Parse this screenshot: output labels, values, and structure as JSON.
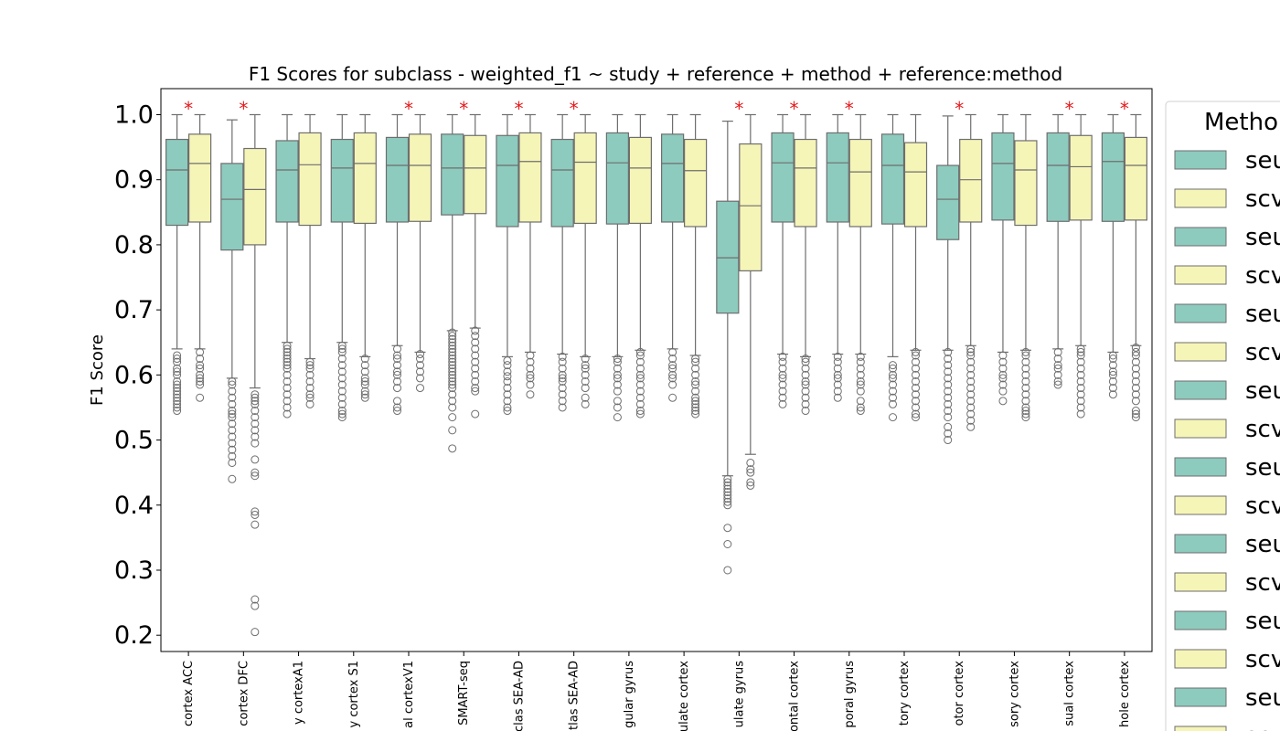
{
  "chart_data": {
    "type": "box",
    "title": "F1 Scores for subclass - weighted_f1 ~ study + reference + method + reference:method",
    "ylabel": "F1 Score",
    "xlabel": "",
    "ylim": [
      0.175,
      1.04
    ],
    "yticks": [
      0.2,
      0.3,
      0.4,
      0.5,
      0.6,
      0.7,
      0.8,
      0.9,
      1.0
    ],
    "ytick_labels": [
      "0.2",
      "0.3",
      "0.4",
      "0.5",
      "0.6",
      "0.7",
      "0.8",
      "0.9",
      "1.0"
    ],
    "legend": {
      "title": "Metho",
      "placement": "right, outside (cropped)",
      "entries": [
        {
          "label": "seu",
          "color": "#8dcbbe"
        },
        {
          "label": "scv",
          "color": "#f6f5b8"
        },
        {
          "label": "seu",
          "color": "#8dcbbe"
        },
        {
          "label": "scv",
          "color": "#f6f5b8"
        },
        {
          "label": "seu",
          "color": "#8dcbbe"
        },
        {
          "label": "scv",
          "color": "#f6f5b8"
        },
        {
          "label": "seu",
          "color": "#8dcbbe"
        },
        {
          "label": "scv",
          "color": "#f6f5b8"
        },
        {
          "label": "seu",
          "color": "#8dcbbe"
        },
        {
          "label": "scv",
          "color": "#f6f5b8"
        },
        {
          "label": "seu",
          "color": "#8dcbbe"
        },
        {
          "label": "scv",
          "color": "#f6f5b8"
        },
        {
          "label": "seu",
          "color": "#8dcbbe"
        },
        {
          "label": "scv",
          "color": "#f6f5b8"
        },
        {
          "label": "seu",
          "color": "#8dcbbe"
        },
        {
          "label": "scv",
          "color": "#f6f5b8"
        }
      ]
    },
    "significance_marker": "*",
    "colors": {
      "teal": "#8dcbbe",
      "yellow": "#f6f5b8",
      "edge": "#6e6e6e",
      "star": "#e41a1c"
    },
    "categories": [
      {
        "label": "cortex ACC",
        "sig": true,
        "boxes": [
          {
            "q1": 0.83,
            "med": 0.915,
            "q3": 0.962,
            "lo": 0.64,
            "hi": 1.0,
            "out": [
              0.63,
              0.625,
              0.62,
              0.61,
              0.605,
              0.6,
              0.59,
              0.585,
              0.58,
              0.575,
              0.57,
              0.565,
              0.56,
              0.555,
              0.55,
              0.545
            ]
          },
          {
            "q1": 0.835,
            "med": 0.925,
            "q3": 0.97,
            "lo": 0.64,
            "hi": 1.0,
            "out": [
              0.635,
              0.625,
              0.615,
              0.61,
              0.6,
              0.595,
              0.59,
              0.585,
              0.565
            ]
          }
        ]
      },
      {
        "label": "cortex DFC",
        "sig": true,
        "boxes": [
          {
            "q1": 0.792,
            "med": 0.87,
            "q3": 0.925,
            "lo": 0.595,
            "hi": 0.992,
            "out": [
              0.59,
              0.585,
              0.575,
              0.565,
              0.555,
              0.545,
              0.54,
              0.535,
              0.525,
              0.515,
              0.505,
              0.495,
              0.485,
              0.475,
              0.465,
              0.44
            ]
          },
          {
            "q1": 0.8,
            "med": 0.885,
            "q3": 0.948,
            "lo": 0.58,
            "hi": 1.0,
            "out": [
              0.57,
              0.565,
              0.56,
              0.555,
              0.545,
              0.535,
              0.525,
              0.515,
              0.505,
              0.495,
              0.47,
              0.45,
              0.445,
              0.39,
              0.385,
              0.37,
              0.255,
              0.245,
              0.205
            ]
          }
        ]
      },
      {
        "label": "y cortexA1",
        "sig": false,
        "boxes": [
          {
            "q1": 0.835,
            "med": 0.915,
            "q3": 0.96,
            "lo": 0.65,
            "hi": 1.0,
            "out": [
              0.645,
              0.64,
              0.635,
              0.63,
              0.625,
              0.62,
              0.615,
              0.61,
              0.6,
              0.59,
              0.58,
              0.57,
              0.56,
              0.55,
              0.54
            ]
          },
          {
            "q1": 0.83,
            "med": 0.923,
            "q3": 0.972,
            "lo": 0.625,
            "hi": 1.0,
            "out": [
              0.62,
              0.615,
              0.61,
              0.6,
              0.59,
              0.58,
              0.57,
              0.565,
              0.555
            ]
          }
        ]
      },
      {
        "label": "y cortex S1",
        "sig": false,
        "boxes": [
          {
            "q1": 0.835,
            "med": 0.918,
            "q3": 0.962,
            "lo": 0.65,
            "hi": 1.0,
            "out": [
              0.645,
              0.64,
              0.635,
              0.625,
              0.615,
              0.605,
              0.595,
              0.585,
              0.575,
              0.565,
              0.555,
              0.545,
              0.54,
              0.535
            ]
          },
          {
            "q1": 0.833,
            "med": 0.925,
            "q3": 0.972,
            "lo": 0.628,
            "hi": 1.0,
            "out": [
              0.625,
              0.615,
              0.605,
              0.595,
              0.59,
              0.585,
              0.575,
              0.57,
              0.565
            ]
          }
        ]
      },
      {
        "label": "al cortexV1",
        "sig": true,
        "boxes": [
          {
            "q1": 0.835,
            "med": 0.922,
            "q3": 0.965,
            "lo": 0.645,
            "hi": 1.0,
            "out": [
              0.64,
              0.63,
              0.625,
              0.615,
              0.605,
              0.6,
              0.59,
              0.58,
              0.56,
              0.55,
              0.545
            ]
          },
          {
            "q1": 0.836,
            "med": 0.922,
            "q3": 0.97,
            "lo": 0.635,
            "hi": 1.0,
            "out": [
              0.632,
              0.625,
              0.615,
              0.605,
              0.595,
              0.58
            ]
          }
        ]
      },
      {
        "label": "SMART-seq",
        "sig": true,
        "boxes": [
          {
            "q1": 0.846,
            "med": 0.918,
            "q3": 0.97,
            "lo": 0.668,
            "hi": 1.0,
            "out": [
              0.665,
              0.66,
              0.655,
              0.65,
              0.645,
              0.64,
              0.635,
              0.63,
              0.625,
              0.62,
              0.615,
              0.61,
              0.605,
              0.6,
              0.595,
              0.59,
              0.585,
              0.58,
              0.57,
              0.56,
              0.55,
              0.535,
              0.515,
              0.487
            ]
          },
          {
            "q1": 0.848,
            "med": 0.918,
            "q3": 0.968,
            "lo": 0.672,
            "hi": 1.0,
            "out": [
              0.668,
              0.66,
              0.65,
              0.64,
              0.63,
              0.62,
              0.61,
              0.6,
              0.59,
              0.58,
              0.575,
              0.54
            ]
          }
        ]
      },
      {
        "label": "clas SEA-AD",
        "sig": true,
        "boxes": [
          {
            "q1": 0.828,
            "med": 0.922,
            "q3": 0.968,
            "lo": 0.628,
            "hi": 1.0,
            "out": [
              0.622,
              0.615,
              0.605,
              0.598,
              0.59,
              0.58,
              0.57,
              0.56,
              0.55,
              0.545
            ]
          },
          {
            "q1": 0.835,
            "med": 0.928,
            "q3": 0.972,
            "lo": 0.635,
            "hi": 1.0,
            "out": [
              0.63,
              0.62,
              0.61,
              0.6,
              0.595,
              0.585,
              0.57
            ]
          }
        ]
      },
      {
        "label": "tlas SEA-AD",
        "sig": true,
        "boxes": [
          {
            "q1": 0.828,
            "med": 0.915,
            "q3": 0.962,
            "lo": 0.632,
            "hi": 1.0,
            "out": [
              0.628,
              0.62,
              0.61,
              0.6,
              0.595,
              0.59,
              0.58,
              0.57,
              0.56,
              0.55
            ]
          },
          {
            "q1": 0.833,
            "med": 0.927,
            "q3": 0.972,
            "lo": 0.628,
            "hi": 1.0,
            "out": [
              0.625,
              0.615,
              0.61,
              0.6,
              0.59,
              0.58,
              0.565,
              0.555
            ]
          }
        ]
      },
      {
        "label": "gular gyrus",
        "sig": false,
        "boxes": [
          {
            "q1": 0.832,
            "med": 0.926,
            "q3": 0.972,
            "lo": 0.628,
            "hi": 1.0,
            "out": [
              0.625,
              0.62,
              0.61,
              0.6,
              0.595,
              0.585,
              0.575,
              0.56,
              0.55,
              0.535
            ]
          },
          {
            "q1": 0.833,
            "med": 0.918,
            "q3": 0.965,
            "lo": 0.638,
            "hi": 1.0,
            "out": [
              0.635,
              0.63,
              0.62,
              0.61,
              0.6,
              0.595,
              0.585,
              0.575,
              0.565,
              0.555,
              0.545,
              0.54
            ]
          }
        ]
      },
      {
        "label": "ulate cortex",
        "sig": false,
        "boxes": [
          {
            "q1": 0.835,
            "med": 0.925,
            "q3": 0.97,
            "lo": 0.64,
            "hi": 1.0,
            "out": [
              0.635,
              0.625,
              0.615,
              0.61,
              0.6,
              0.595,
              0.585,
              0.565
            ]
          },
          {
            "q1": 0.828,
            "med": 0.914,
            "q3": 0.962,
            "lo": 0.63,
            "hi": 1.0,
            "out": [
              0.625,
              0.62,
              0.61,
              0.6,
              0.59,
              0.585,
              0.575,
              0.565,
              0.56,
              0.555,
              0.55,
              0.545,
              0.54
            ]
          }
        ]
      },
      {
        "label": "ulate gyrus",
        "sig": true,
        "boxes": [
          {
            "q1": 0.695,
            "med": 0.78,
            "q3": 0.867,
            "lo": 0.445,
            "hi": 0.99,
            "out": [
              0.44,
              0.435,
              0.43,
              0.425,
              0.42,
              0.415,
              0.41,
              0.405,
              0.4,
              0.365,
              0.34,
              0.3
            ]
          },
          {
            "q1": 0.76,
            "med": 0.86,
            "q3": 0.955,
            "lo": 0.478,
            "hi": 1.0,
            "out": [
              0.465,
              0.455,
              0.45,
              0.435,
              0.43
            ]
          }
        ]
      },
      {
        "label": "ontal cortex",
        "sig": true,
        "boxes": [
          {
            "q1": 0.835,
            "med": 0.926,
            "q3": 0.972,
            "lo": 0.632,
            "hi": 1.0,
            "out": [
              0.628,
              0.62,
              0.61,
              0.6,
              0.595,
              0.585,
              0.575,
              0.565,
              0.555
            ]
          },
          {
            "q1": 0.828,
            "med": 0.918,
            "q3": 0.962,
            "lo": 0.628,
            "hi": 1.0,
            "out": [
              0.625,
              0.62,
              0.61,
              0.6,
              0.59,
              0.585,
              0.575,
              0.565,
              0.555,
              0.545
            ]
          }
        ]
      },
      {
        "label": "poral gyrus",
        "sig": true,
        "boxes": [
          {
            "q1": 0.835,
            "med": 0.926,
            "q3": 0.972,
            "lo": 0.632,
            "hi": 1.0,
            "out": [
              0.628,
              0.62,
              0.61,
              0.6,
              0.595,
              0.585,
              0.575,
              0.565
            ]
          },
          {
            "q1": 0.828,
            "med": 0.912,
            "q3": 0.962,
            "lo": 0.632,
            "hi": 1.0,
            "out": [
              0.628,
              0.62,
              0.61,
              0.6,
              0.59,
              0.585,
              0.575,
              0.56,
              0.55,
              0.545
            ]
          }
        ]
      },
      {
        "label": "tory cortex",
        "sig": false,
        "boxes": [
          {
            "q1": 0.832,
            "med": 0.922,
            "q3": 0.97,
            "lo": 0.628,
            "hi": 1.0,
            "out": [
              0.615,
              0.61,
              0.6,
              0.595,
              0.585,
              0.575,
              0.565,
              0.555,
              0.535
            ]
          },
          {
            "q1": 0.828,
            "med": 0.912,
            "q3": 0.957,
            "lo": 0.638,
            "hi": 1.0,
            "out": [
              0.635,
              0.63,
              0.62,
              0.61,
              0.6,
              0.59,
              0.58,
              0.57,
              0.56,
              0.55,
              0.54,
              0.535
            ]
          }
        ]
      },
      {
        "label": "otor cortex",
        "sig": true,
        "boxes": [
          {
            "q1": 0.808,
            "med": 0.87,
            "q3": 0.922,
            "lo": 0.638,
            "hi": 0.998,
            "out": [
              0.635,
              0.625,
              0.615,
              0.605,
              0.595,
              0.585,
              0.575,
              0.565,
              0.555,
              0.545,
              0.535,
              0.52,
              0.51,
              0.5
            ]
          },
          {
            "q1": 0.835,
            "med": 0.9,
            "q3": 0.962,
            "lo": 0.645,
            "hi": 1.0,
            "out": [
              0.64,
              0.635,
              0.63,
              0.62,
              0.61,
              0.6,
              0.59,
              0.58,
              0.57,
              0.56,
              0.55,
              0.54,
              0.53,
              0.52
            ]
          }
        ]
      },
      {
        "label": "sory cortex",
        "sig": false,
        "boxes": [
          {
            "q1": 0.838,
            "med": 0.925,
            "q3": 0.972,
            "lo": 0.635,
            "hi": 1.0,
            "out": [
              0.63,
              0.62,
              0.61,
              0.6,
              0.595,
              0.585,
              0.575,
              0.56
            ]
          },
          {
            "q1": 0.83,
            "med": 0.915,
            "q3": 0.96,
            "lo": 0.638,
            "hi": 1.0,
            "out": [
              0.635,
              0.63,
              0.62,
              0.61,
              0.6,
              0.59,
              0.58,
              0.57,
              0.56,
              0.55,
              0.545,
              0.54,
              0.535
            ]
          }
        ]
      },
      {
        "label": "sual cortex",
        "sig": true,
        "boxes": [
          {
            "q1": 0.836,
            "med": 0.922,
            "q3": 0.972,
            "lo": 0.64,
            "hi": 1.0,
            "out": [
              0.635,
              0.625,
              0.615,
              0.61,
              0.6,
              0.59,
              0.585
            ]
          },
          {
            "q1": 0.838,
            "med": 0.92,
            "q3": 0.968,
            "lo": 0.645,
            "hi": 1.0,
            "out": [
              0.64,
              0.635,
              0.63,
              0.62,
              0.61,
              0.6,
              0.59,
              0.58,
              0.57,
              0.56,
              0.55,
              0.54
            ]
          }
        ]
      },
      {
        "label": "hole cortex",
        "sig": true,
        "boxes": [
          {
            "q1": 0.836,
            "med": 0.928,
            "q3": 0.972,
            "lo": 0.635,
            "hi": 1.0,
            "out": [
              0.63,
              0.625,
              0.615,
              0.605,
              0.6,
              0.59,
              0.58,
              0.57
            ]
          },
          {
            "q1": 0.838,
            "med": 0.922,
            "q3": 0.965,
            "lo": 0.645,
            "hi": 1.0,
            "out": [
              0.642,
              0.635,
              0.63,
              0.62,
              0.61,
              0.6,
              0.59,
              0.58,
              0.57,
              0.56,
              0.545,
              0.54,
              0.535
            ]
          }
        ]
      }
    ]
  }
}
